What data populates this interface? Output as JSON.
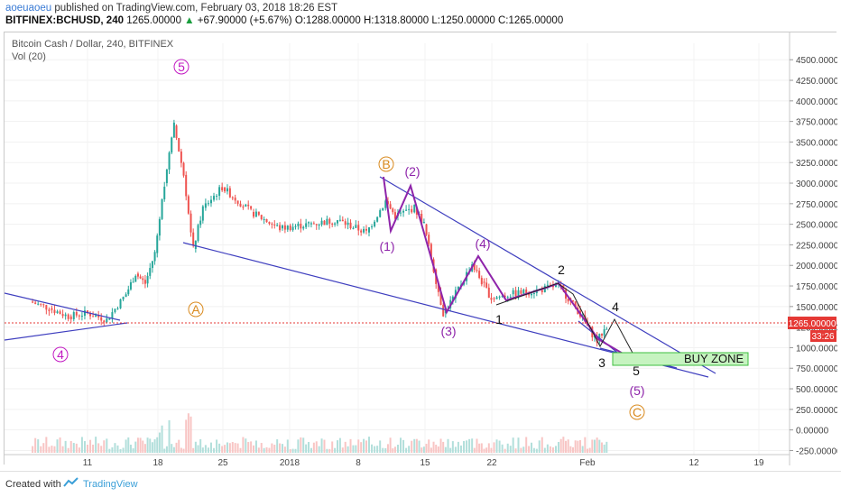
{
  "header": {
    "author": "aoeuaoeu",
    "published": "published on TradingView.com, February 03, 2018 18:26 EST",
    "symbol": "BITFINEX:BCHUSD, 240",
    "last": "1265.00000",
    "change": "+67.90000 (+5.67%)",
    "open": "O:1288.00000",
    "high": "H:1318.80000",
    "low": "L:1250.00000",
    "close": "C:1265.00000"
  },
  "chart_data": {
    "type": "candlestick",
    "title": "Bitcoin Cash / Dollar, 240, BITFINEX",
    "indicator": "Vol (20)",
    "y_ticks": [
      "-250.00000",
      "0.00000",
      "250.00000",
      "500.00000",
      "750.00000",
      "1000.00000",
      "1250.00000",
      "1500.00000",
      "1750.00000",
      "2000.00000",
      "2250.00000",
      "2500.00000",
      "2750.00000",
      "3000.00000",
      "3250.00000",
      "3500.00000",
      "3750.00000",
      "4000.00000",
      "4250.00000",
      "4500.00000"
    ],
    "x_ticks": [
      "11",
      "18",
      "25",
      "2018",
      "8",
      "15",
      "22",
      "Feb",
      "12",
      "19"
    ],
    "ylim": [
      -300,
      4700
    ],
    "price_label": "1265.00000",
    "countdown": "33:26",
    "approx_close_path": [
      {
        "x": "2017-12-05",
        "y": 1560
      },
      {
        "x": "2017-12-07",
        "y": 1480
      },
      {
        "x": "2017-12-09",
        "y": 1380
      },
      {
        "x": "2017-12-11",
        "y": 1420
      },
      {
        "x": "2017-12-13",
        "y": 1340
      },
      {
        "x": "2017-12-15",
        "y": 1650
      },
      {
        "x": "2017-12-16",
        "y": 1900
      },
      {
        "x": "2017-12-17",
        "y": 1780
      },
      {
        "x": "2017-12-18",
        "y": 2150
      },
      {
        "x": "2017-12-19",
        "y": 3000
      },
      {
        "x": "2017-12-20",
        "y": 3700
      },
      {
        "x": "2017-12-21",
        "y": 3100
      },
      {
        "x": "2017-12-22",
        "y": 2200
      },
      {
        "x": "2017-12-23",
        "y": 2700
      },
      {
        "x": "2017-12-25",
        "y": 2950
      },
      {
        "x": "2017-12-28",
        "y": 2650
      },
      {
        "x": "2017-12-31",
        "y": 2450
      },
      {
        "x": "2018-01-03",
        "y": 2500
      },
      {
        "x": "2018-01-06",
        "y": 2550
      },
      {
        "x": "2018-01-09",
        "y": 2400
      },
      {
        "x": "2018-01-11",
        "y": 2780
      },
      {
        "x": "2018-01-12",
        "y": 2600
      },
      {
        "x": "2018-01-14",
        "y": 2700
      },
      {
        "x": "2018-01-15",
        "y": 2500
      },
      {
        "x": "2018-01-16",
        "y": 1950
      },
      {
        "x": "2018-01-17",
        "y": 1420
      },
      {
        "x": "2018-01-18",
        "y": 1600
      },
      {
        "x": "2018-01-20",
        "y": 2020
      },
      {
        "x": "2018-01-21",
        "y": 1800
      },
      {
        "x": "2018-01-22",
        "y": 1600
      },
      {
        "x": "2018-01-24",
        "y": 1650
      },
      {
        "x": "2018-01-27",
        "y": 1700
      },
      {
        "x": "2018-01-29",
        "y": 1760
      },
      {
        "x": "2018-01-30",
        "y": 1600
      },
      {
        "x": "2018-01-31",
        "y": 1450
      },
      {
        "x": "2018-02-01",
        "y": 1260
      },
      {
        "x": "2018-02-02",
        "y": 1080
      },
      {
        "x": "2018-02-03",
        "y": 1265
      }
    ],
    "annotations": [
      "5",
      "A",
      "4",
      "B",
      "(1)",
      "(2)",
      "(3)",
      "(4)",
      "1",
      "2",
      "3",
      "4",
      "5",
      "(5)",
      "C",
      "BUY ZONE"
    ]
  },
  "colors": {
    "up": "#26a69a",
    "down": "#ef5350",
    "wave_purple": "#8e24aa",
    "trend_blue": "#3f3fbf",
    "orange": "#d98a1e",
    "price_red": "#e53935"
  },
  "footer": {
    "created": "Created with",
    "brand": "TradingView"
  }
}
